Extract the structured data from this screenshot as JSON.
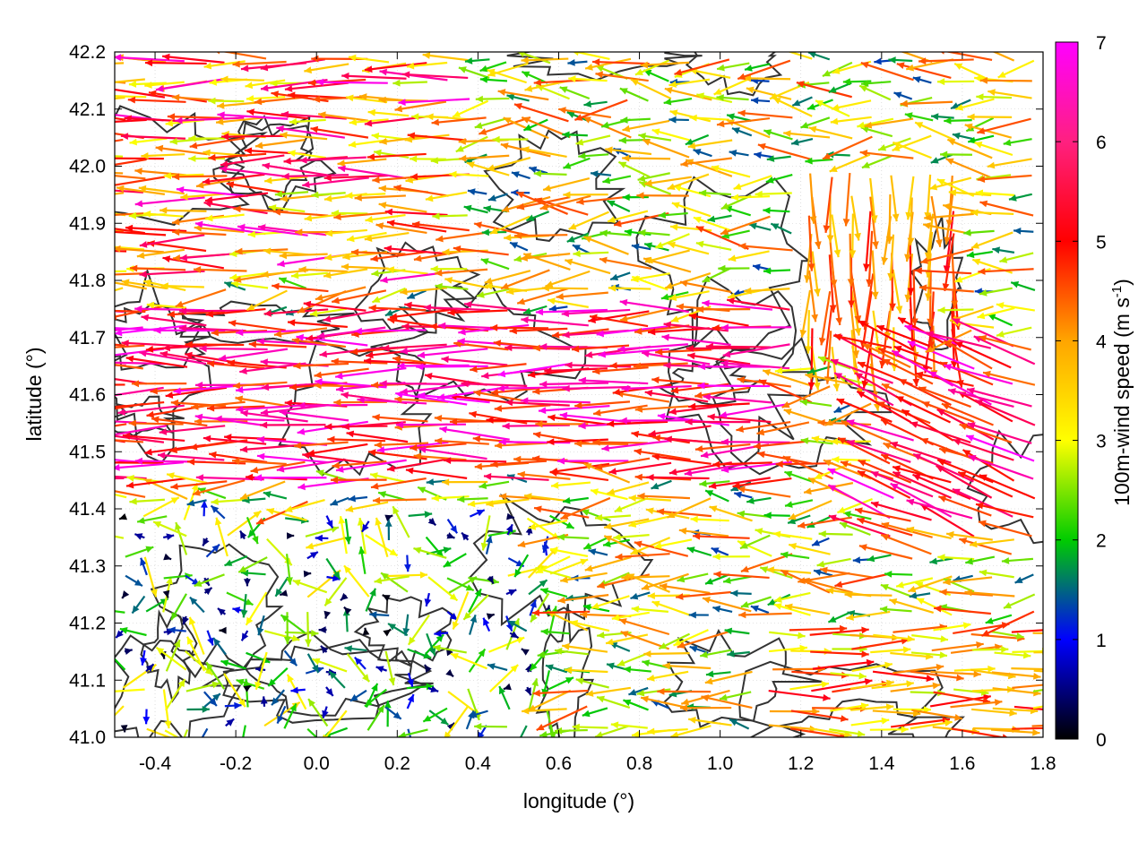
{
  "chart_data": {
    "type": "vector-field",
    "xlabel": "longitude (°)",
    "ylabel": "latitude (°)",
    "colorbar_label": "100m-wind speed (m s-1)",
    "colorbar_label_parts": {
      "main": "100m-wind speed (m s",
      "sup": "-1",
      "end": ")"
    },
    "xlim": [
      -0.5,
      1.8
    ],
    "ylim": [
      41.0,
      42.2
    ],
    "x_ticks": [
      -0.4,
      -0.2,
      0.0,
      0.2,
      0.4,
      0.6,
      0.8,
      1.0,
      1.2,
      1.4,
      1.6,
      1.8
    ],
    "x_tick_labels": [
      "-0.4",
      "-0.2",
      "0.0",
      "0.2",
      "0.4",
      "0.6",
      "0.8",
      "1.0",
      "1.2",
      "1.4",
      "1.6",
      "1.8"
    ],
    "y_ticks": [
      41.0,
      41.1,
      41.2,
      41.3,
      41.4,
      41.5,
      41.6,
      41.7,
      41.8,
      41.9,
      42.0,
      42.1,
      42.2
    ],
    "y_tick_labels": [
      "41.0",
      "41.1",
      "41.2",
      "41.3",
      "41.4",
      "41.5",
      "41.6",
      "41.7",
      "41.8",
      "41.9",
      "42.0",
      "42.1",
      "42.2"
    ],
    "colorbar_range": [
      0,
      7
    ],
    "colorbar_ticks": [
      "0",
      "1",
      "2",
      "3",
      "4",
      "5",
      "6",
      "7"
    ],
    "colormap": [
      "#000000",
      "#0000ff",
      "#00cc00",
      "#ffff00",
      "#ffa500",
      "#ff0000",
      "#ff00ff"
    ],
    "grid": true,
    "contour_color": "#333333",
    "wind_regions": [
      {
        "region": "northwest",
        "lon": [
          -0.5,
          0.4
        ],
        "lat": [
          41.8,
          42.2
        ],
        "direction": "westward",
        "speed_range": [
          3,
          7
        ]
      },
      {
        "region": "central band",
        "lon": [
          -0.5,
          1.2
        ],
        "lat": [
          41.45,
          41.75
        ],
        "direction": "westward",
        "speed_range": [
          5,
          7
        ]
      },
      {
        "region": "northeast",
        "lon": [
          1.2,
          1.6
        ],
        "lat": [
          41.65,
          42.0
        ],
        "direction": "southward",
        "speed_range": [
          4,
          6
        ]
      },
      {
        "region": "east",
        "lon": [
          1.4,
          1.8
        ],
        "lat": [
          41.35,
          41.7
        ],
        "direction": "north-westward",
        "speed_range": [
          5,
          7
        ]
      },
      {
        "region": "southwest",
        "lon": [
          -0.5,
          0.6
        ],
        "lat": [
          41.0,
          41.4
        ],
        "direction": "mixed",
        "speed_range": [
          0,
          4
        ]
      },
      {
        "region": "southeast",
        "lon": [
          1.1,
          1.8
        ],
        "lat": [
          41.0,
          41.2
        ],
        "direction": "eastward",
        "speed_range": [
          3,
          6
        ]
      }
    ]
  }
}
